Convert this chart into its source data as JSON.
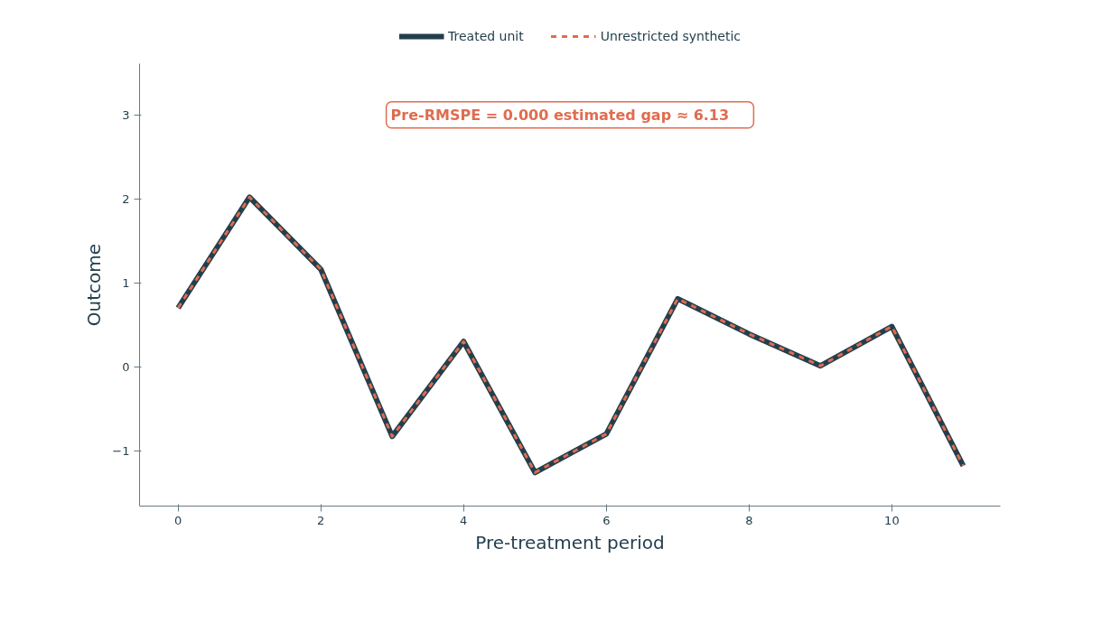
{
  "chart_data": {
    "type": "line",
    "xlabel": "Pre-treatment period",
    "ylabel": "Outcome",
    "x": [
      0,
      1,
      2,
      3,
      4,
      5,
      6,
      7,
      8,
      9,
      10,
      11
    ],
    "series": [
      {
        "name": "Treated unit",
        "color": "#233f4d",
        "line_style": "solid",
        "values": [
          0.7,
          2.02,
          1.16,
          -0.83,
          0.3,
          -1.26,
          -0.8,
          0.81,
          0.39,
          0.01,
          0.48,
          -1.18
        ]
      },
      {
        "name": "Unrestricted synthetic",
        "color": "#e06c4f",
        "line_style": "dashed",
        "values": [
          0.7,
          2.02,
          1.16,
          -0.83,
          0.3,
          -1.26,
          -0.8,
          0.81,
          0.39,
          0.01,
          0.48,
          -1.18
        ]
      }
    ],
    "xlim": [
      -0.54,
      11.52
    ],
    "ylim": [
      -1.66,
      3.61
    ],
    "xticks": [
      0,
      2,
      4,
      6,
      8,
      10
    ],
    "yticks": [
      {
        "value": -1,
        "label": "−1"
      },
      0,
      1,
      2,
      3
    ],
    "annotations": [
      "Pre-RMSPE = 0.000     estimated gap ≈ 6.13"
    ],
    "grid": false,
    "legend": "top",
    "marker": "none"
  }
}
